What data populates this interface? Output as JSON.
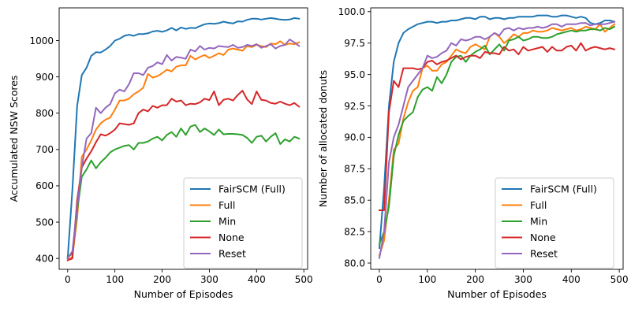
{
  "chart_data": [
    {
      "type": "line",
      "xlabel": "Number of Episodes",
      "ylabel": "Accumulated NSW Scores",
      "xlim": [
        -18,
        508
      ],
      "ylim": [
        370,
        1090
      ],
      "xticks": [
        0,
        100,
        200,
        300,
        400,
        500
      ],
      "yticks": [
        400,
        500,
        600,
        700,
        800,
        900,
        1000
      ],
      "grid": false,
      "legend_position": "bottom-right",
      "x": [
        0,
        10,
        20,
        30,
        40,
        50,
        60,
        70,
        80,
        90,
        100,
        110,
        120,
        130,
        140,
        150,
        160,
        170,
        180,
        190,
        200,
        210,
        220,
        230,
        240,
        250,
        260,
        270,
        280,
        290,
        300,
        310,
        320,
        330,
        340,
        350,
        360,
        370,
        380,
        390,
        400,
        410,
        420,
        430,
        440,
        450,
        460,
        470,
        480,
        490
      ],
      "series": [
        {
          "name": "FairSCM (Full)",
          "color": "#1f77b4",
          "values": [
            400,
            590,
            820,
            905,
            925,
            958,
            968,
            967,
            975,
            985,
            1000,
            1005,
            1013,
            1016,
            1013,
            1018,
            1018,
            1020,
            1025,
            1027,
            1024,
            1028,
            1035,
            1028,
            1036,
            1032,
            1035,
            1034,
            1040,
            1045,
            1047,
            1046,
            1048,
            1052,
            1049,
            1047,
            1053,
            1052,
            1057,
            1060,
            1060,
            1058,
            1060,
            1062,
            1060,
            1058,
            1057,
            1058,
            1062,
            1060
          ]
        },
        {
          "name": "Full",
          "color": "#ff7f0e",
          "values": [
            395,
            405,
            510,
            680,
            700,
            725,
            755,
            772,
            782,
            788,
            810,
            835,
            835,
            840,
            852,
            860,
            870,
            908,
            898,
            902,
            910,
            920,
            915,
            928,
            932,
            932,
            958,
            948,
            955,
            960,
            952,
            958,
            965,
            960,
            975,
            978,
            975,
            972,
            985,
            982,
            988,
            985,
            982,
            992,
            990,
            998,
            988,
            992,
            990,
            995
          ]
        },
        {
          "name": "Min",
          "color": "#2ca02c",
          "values": [
            405,
            412,
            530,
            625,
            645,
            670,
            648,
            665,
            677,
            692,
            700,
            705,
            710,
            712,
            700,
            718,
            718,
            722,
            730,
            735,
            725,
            740,
            748,
            735,
            758,
            740,
            763,
            768,
            748,
            758,
            750,
            740,
            755,
            742,
            743,
            743,
            742,
            740,
            732,
            718,
            735,
            738,
            722,
            735,
            745,
            715,
            728,
            722,
            735,
            730
          ]
        },
        {
          "name": "None",
          "color": "#d62728",
          "values": [
            395,
            400,
            560,
            650,
            675,
            695,
            720,
            742,
            738,
            745,
            755,
            772,
            770,
            768,
            772,
            800,
            810,
            805,
            820,
            815,
            822,
            822,
            840,
            832,
            835,
            822,
            826,
            825,
            830,
            840,
            836,
            860,
            822,
            837,
            840,
            835,
            850,
            862,
            838,
            825,
            860,
            837,
            835,
            828,
            826,
            832,
            826,
            822,
            828,
            818
          ]
        },
        {
          "name": "Reset",
          "color": "#9467bd",
          "values": [
            400,
            420,
            540,
            650,
            730,
            745,
            815,
            800,
            815,
            825,
            855,
            865,
            860,
            880,
            910,
            910,
            905,
            925,
            930,
            940,
            935,
            960,
            945,
            955,
            953,
            950,
            975,
            970,
            985,
            975,
            980,
            978,
            985,
            983,
            982,
            988,
            980,
            982,
            988,
            985,
            990,
            980,
            985,
            990,
            978,
            985,
            988,
            1003,
            995,
            985
          ]
        }
      ]
    },
    {
      "type": "line",
      "xlabel": "Number of Episodes",
      "ylabel": "Number of allocated donuts",
      "xlim": [
        -18,
        508
      ],
      "ylim": [
        79.5,
        100.3
      ],
      "xticks": [
        0,
        100,
        200,
        300,
        400,
        500
      ],
      "yticks": [
        80.0,
        82.5,
        85.0,
        87.5,
        90.0,
        92.5,
        95.0,
        97.5,
        100.0
      ],
      "grid": false,
      "legend_position": "bottom-right",
      "x": [
        0,
        10,
        20,
        30,
        40,
        50,
        60,
        70,
        80,
        90,
        100,
        110,
        120,
        130,
        140,
        150,
        160,
        170,
        180,
        190,
        200,
        210,
        220,
        230,
        240,
        250,
        260,
        270,
        280,
        290,
        300,
        310,
        320,
        330,
        340,
        350,
        360,
        370,
        380,
        390,
        400,
        410,
        420,
        430,
        440,
        450,
        460,
        470,
        480,
        490
      ],
      "series": [
        {
          "name": "FairSCM (Full)",
          "color": "#1f77b4",
          "values": [
            81.2,
            86.0,
            92.5,
            96.0,
            97.5,
            98.3,
            98.6,
            98.8,
            99.0,
            99.1,
            99.2,
            99.2,
            99.1,
            99.2,
            99.2,
            99.3,
            99.3,
            99.4,
            99.5,
            99.5,
            99.4,
            99.6,
            99.6,
            99.4,
            99.5,
            99.5,
            99.4,
            99.5,
            99.5,
            99.6,
            99.6,
            99.6,
            99.6,
            99.7,
            99.7,
            99.7,
            99.6,
            99.6,
            99.7,
            99.7,
            99.6,
            99.5,
            99.6,
            99.5,
            99.1,
            99.0,
            99.1,
            99.3,
            99.3,
            99.2
          ]
        },
        {
          "name": "Full",
          "color": "#ff7f0e",
          "values": [
            80.6,
            81.8,
            85.0,
            89.0,
            89.5,
            91.5,
            92.8,
            93.7,
            94.0,
            95.5,
            95.7,
            95.3,
            95.3,
            95.8,
            96.0,
            96.5,
            97.0,
            96.8,
            96.7,
            97.2,
            97.4,
            97.2,
            97.0,
            98.0,
            98.3,
            98.0,
            97.5,
            97.8,
            98.2,
            98.0,
            98.3,
            98.3,
            98.5,
            98.4,
            98.4,
            98.5,
            98.7,
            98.6,
            98.5,
            98.6,
            98.7,
            98.5,
            98.6,
            98.8,
            98.7,
            98.6,
            99.0,
            98.4,
            98.7,
            99.0
          ]
        },
        {
          "name": "Min",
          "color": "#2ca02c",
          "values": [
            81.5,
            82.5,
            84.5,
            88.5,
            90.2,
            91.3,
            91.7,
            92.0,
            93.2,
            93.8,
            94.0,
            93.7,
            94.8,
            94.3,
            95.0,
            96.0,
            96.4,
            96.5,
            96.0,
            96.5,
            96.8,
            97.0,
            97.3,
            96.6,
            97.0,
            97.4,
            96.9,
            97.7,
            97.8,
            98.0,
            97.7,
            97.8,
            98.0,
            98.0,
            97.9,
            97.9,
            98.0,
            98.2,
            98.3,
            98.4,
            98.5,
            98.4,
            98.5,
            98.5,
            98.6,
            98.6,
            98.5,
            98.7,
            98.6,
            98.8
          ]
        },
        {
          "name": "None",
          "color": "#d62728",
          "values": [
            84.2,
            84.2,
            92.0,
            94.5,
            94.0,
            95.5,
            95.5,
            95.5,
            95.4,
            95.5,
            96.0,
            96.1,
            95.8,
            96.0,
            96.1,
            96.3,
            96.5,
            96.2,
            96.4,
            96.5,
            96.5,
            96.3,
            96.8,
            96.7,
            96.7,
            96.6,
            97.2,
            96.9,
            97.0,
            96.6,
            97.2,
            96.9,
            97.0,
            97.1,
            97.2,
            96.8,
            97.2,
            96.9,
            96.9,
            97.2,
            97.3,
            96.9,
            97.5,
            96.9,
            97.1,
            97.2,
            97.1,
            97.0,
            97.1,
            97.0
          ]
        },
        {
          "name": "Reset",
          "color": "#9467bd",
          "values": [
            80.4,
            82.5,
            88.0,
            90.0,
            91.0,
            92.5,
            94.0,
            94.5,
            95.0,
            95.5,
            96.5,
            96.3,
            96.4,
            96.7,
            96.9,
            97.5,
            97.3,
            97.8,
            97.7,
            97.8,
            98.0,
            98.0,
            97.8,
            98.0,
            98.3,
            98.1,
            98.6,
            98.7,
            98.5,
            98.7,
            98.6,
            98.7,
            98.7,
            98.8,
            98.7,
            98.8,
            99.0,
            99.0,
            98.8,
            99.0,
            99.0,
            99.0,
            99.1,
            99.1,
            98.9,
            99.0,
            99.0,
            99.0,
            99.1,
            99.2
          ]
        }
      ]
    }
  ]
}
